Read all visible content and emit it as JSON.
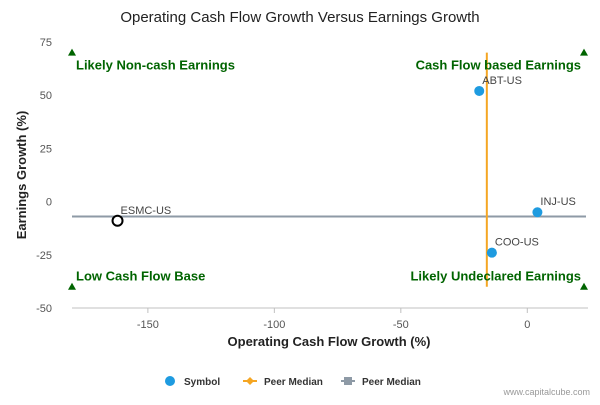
{
  "chart_data": {
    "type": "scatter",
    "title": "Operating Cash Flow Growth Versus Earnings Growth",
    "xlabel": "Operating Cash Flow Growth (%)",
    "ylabel": "Earnings Growth (%)",
    "xlim": [
      -180,
      24
    ],
    "ylim": [
      -50,
      75
    ],
    "x_ticks": [
      -150,
      -100,
      -50,
      0
    ],
    "y_ticks": [
      75,
      50,
      25,
      0,
      -25,
      -50
    ],
    "grid": false,
    "points": [
      {
        "label": "ABT-US",
        "x": -19,
        "y": 52,
        "style": "filled",
        "color": "#1e9be0"
      },
      {
        "label": "INJ-US",
        "x": 4,
        "y": -5,
        "style": "filled",
        "color": "#1e9be0"
      },
      {
        "label": "COO-US",
        "x": -14,
        "y": -24,
        "style": "filled",
        "color": "#1e9be0"
      },
      {
        "label": "ESMC-US",
        "x": -162,
        "y": -9,
        "style": "hollow",
        "color": "#000000"
      }
    ],
    "peer_median_x": -16,
    "peer_median_y": -7,
    "peer_median_x_color": "#f5a623",
    "peer_median_y_color": "#8e9aa6",
    "quadrant_labels": {
      "top_left": "Likely Non-cash Earnings",
      "top_right": "Cash Flow based Earnings",
      "bottom_left": "Low Cash Flow Base",
      "bottom_right": "Likely Undeclared Earnings"
    },
    "quadrant_color": "#006400",
    "legend_placement": "bottom",
    "legend": [
      {
        "label": "Symbol",
        "marker": "circle",
        "color": "#1e9be0"
      },
      {
        "label": "Peer Median",
        "marker": "diamond-line",
        "color": "#f5a623"
      },
      {
        "label": "Peer Median",
        "marker": "square-line",
        "color": "#8e9aa6"
      }
    ],
    "watermark": "www.capitalcube.com"
  }
}
